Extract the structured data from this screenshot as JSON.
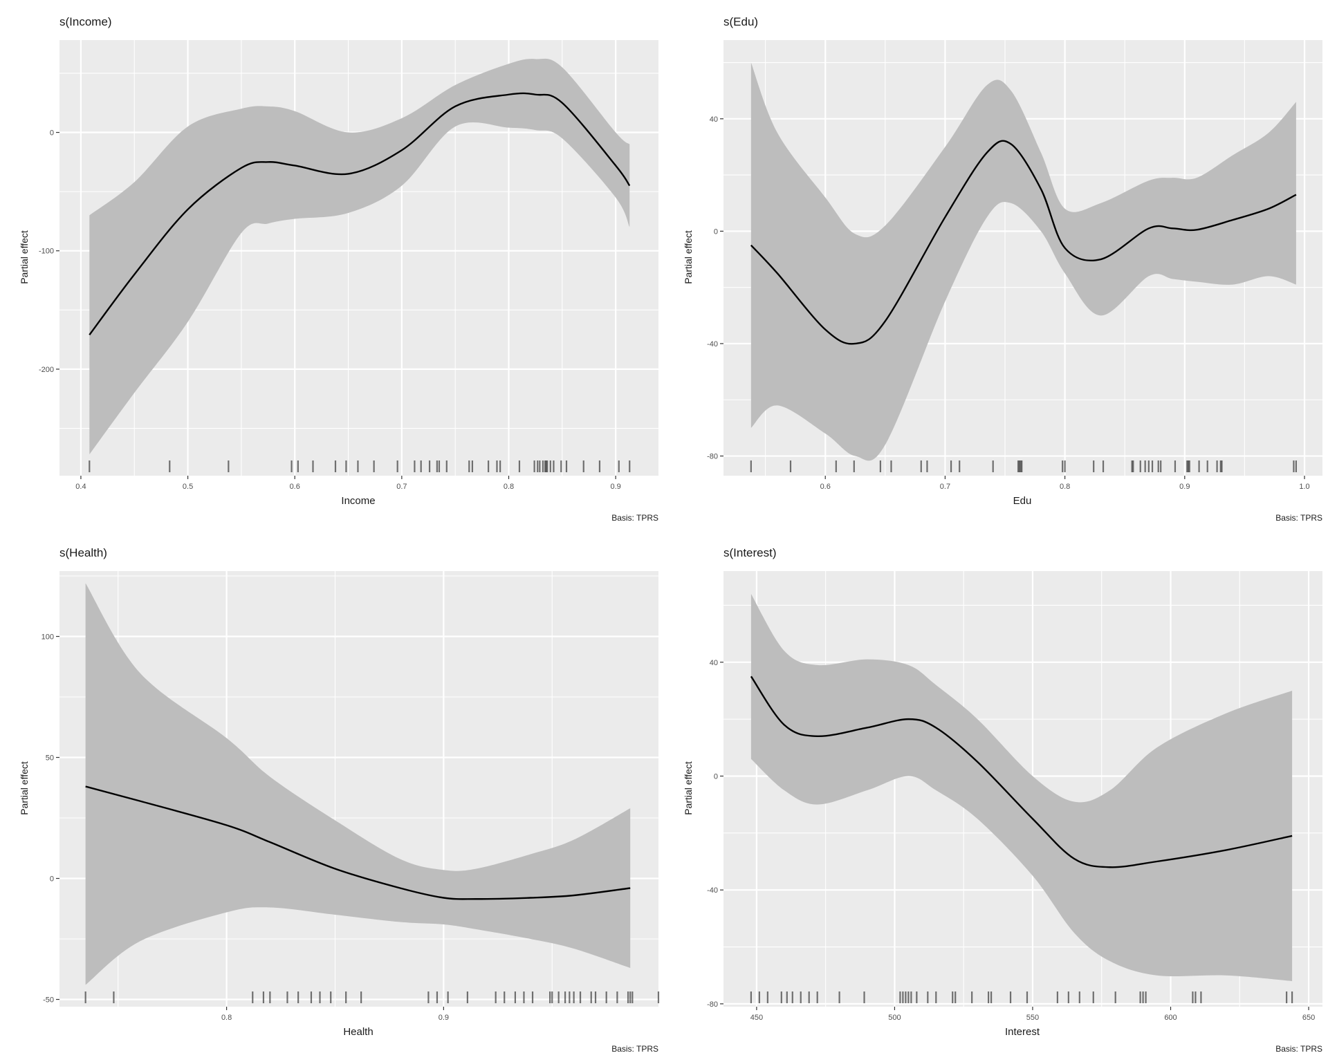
{
  "chart_data": [
    {
      "type": "line",
      "title": "s(Income)",
      "xlabel": "Income",
      "ylabel": "Partial effect",
      "caption": "Basis: TPRS",
      "xlim": [
        0.38,
        0.94
      ],
      "ylim": [
        -290,
        78
      ],
      "xticks": [
        0.4,
        0.5,
        0.6,
        0.7,
        0.8,
        0.9
      ],
      "xtick_labels": [
        "0.4",
        "0.5",
        "0.6",
        "0.7",
        "0.8",
        "0.9"
      ],
      "yticks": [
        -200,
        -100,
        0
      ],
      "ytick_labels": [
        "-200",
        "-100",
        "0"
      ],
      "grid": true,
      "series": [
        {
          "x": [
            0.408,
            0.45,
            0.5,
            0.55,
            0.575,
            0.6,
            0.65,
            0.7,
            0.75,
            0.8,
            0.825,
            0.85,
            0.9,
            0.913
          ],
          "fit": [
            -171,
            -120,
            -65,
            -30,
            -25,
            -28,
            -35,
            -15,
            22,
            32,
            32,
            25,
            -28,
            -45
          ],
          "lower": [
            -272,
            -220,
            -160,
            -85,
            -77,
            -73,
            -68,
            -45,
            5,
            4,
            2,
            -5,
            -55,
            -80
          ],
          "upper": [
            -70,
            -42,
            5,
            20,
            22,
            18,
            0,
            12,
            40,
            58,
            62,
            55,
            0,
            -10
          ]
        }
      ],
      "rug": [
        0.408,
        0.483,
        0.538,
        0.597,
        0.603,
        0.617,
        0.638,
        0.648,
        0.659,
        0.674,
        0.696,
        0.712,
        0.718,
        0.726,
        0.733,
        0.735,
        0.742,
        0.763,
        0.766,
        0.781,
        0.789,
        0.792,
        0.81,
        0.824,
        0.827,
        0.829,
        0.832,
        0.834,
        0.835,
        0.836,
        0.839,
        0.842,
        0.849,
        0.854,
        0.87,
        0.885,
        0.903,
        0.913
      ]
    },
    {
      "type": "line",
      "title": "s(Edu)",
      "xlabel": "Edu",
      "ylabel": "Partial effect",
      "caption": "Basis: TPRS",
      "xlim": [
        0.515,
        1.015
      ],
      "ylim": [
        -87,
        68
      ],
      "xticks": [
        0.6,
        0.7,
        0.8,
        0.9,
        1.0
      ],
      "xtick_labels": [
        "0.6",
        "0.7",
        "0.8",
        "0.9",
        "1.0"
      ],
      "yticks": [
        -80,
        -40,
        0,
        40
      ],
      "ytick_labels": [
        "-80",
        "-40",
        "0",
        "40"
      ],
      "grid": true,
      "series": [
        {
          "x": [
            0.538,
            0.56,
            0.6,
            0.625,
            0.65,
            0.7,
            0.735,
            0.755,
            0.78,
            0.8,
            0.83,
            0.87,
            0.89,
            0.91,
            0.94,
            0.97,
            0.993
          ],
          "fit": [
            -5,
            -15,
            -35,
            -40,
            -32,
            5,
            28,
            31,
            15,
            -6,
            -10,
            1,
            1,
            0.5,
            4,
            8,
            13
          ],
          "lower": [
            -70,
            -62,
            -72,
            -80,
            -76,
            -25,
            5,
            10,
            0,
            -15,
            -30,
            -16,
            -17,
            -18,
            -19,
            -16,
            -19
          ],
          "upper": [
            60,
            35,
            12,
            -1,
            2,
            30,
            52,
            50,
            28,
            8,
            10,
            18,
            19,
            19,
            27,
            35,
            46
          ]
        }
      ],
      "rug": [
        0.538,
        0.571,
        0.609,
        0.624,
        0.646,
        0.655,
        0.68,
        0.685,
        0.705,
        0.712,
        0.74,
        0.761,
        0.762,
        0.763,
        0.764,
        0.798,
        0.8,
        0.824,
        0.832,
        0.856,
        0.857,
        0.863,
        0.867,
        0.87,
        0.873,
        0.878,
        0.88,
        0.892,
        0.902,
        0.903,
        0.904,
        0.912,
        0.919,
        0.927,
        0.93,
        0.931,
        0.991,
        0.993
      ]
    },
    {
      "type": "line",
      "title": "s(Health)",
      "xlabel": "Health",
      "ylabel": "Partial effect",
      "caption": "Basis: TPRS",
      "xlim": [
        0.723,
        0.999
      ],
      "ylim": [
        -53,
        127
      ],
      "xticks": [
        0.8,
        0.9
      ],
      "xtick_labels": [
        "0.8",
        "0.9"
      ],
      "yticks": [
        -50,
        0,
        50,
        100
      ],
      "ytick_labels": [
        "-50",
        "0",
        "50",
        "100"
      ],
      "grid": true,
      "series": [
        {
          "x": [
            0.735,
            0.76,
            0.8,
            0.82,
            0.85,
            0.88,
            0.9,
            0.915,
            0.94,
            0.96,
            0.986
          ],
          "fit": [
            38,
            32,
            22,
            15,
            4,
            -4,
            -8,
            -8.5,
            -8,
            -7,
            -4
          ],
          "lower": [
            -44,
            -26,
            -14,
            -12,
            -15,
            -18,
            -19,
            -21,
            -25,
            -29,
            -37
          ],
          "upper": [
            122,
            85,
            58,
            42,
            24,
            8,
            3.5,
            4,
            10,
            16,
            29
          ]
        }
      ],
      "rug": [
        0.735,
        0.748,
        0.812,
        0.817,
        0.82,
        0.828,
        0.833,
        0.839,
        0.843,
        0.848,
        0.855,
        0.862,
        0.893,
        0.897,
        0.902,
        0.911,
        0.924,
        0.928,
        0.933,
        0.937,
        0.941,
        0.949,
        0.95,
        0.953,
        0.956,
        0.958,
        0.96,
        0.963,
        0.968,
        0.97,
        0.975,
        0.98,
        0.985,
        0.986,
        0.987,
        0.999
      ]
    },
    {
      "type": "line",
      "title": "s(Interest)",
      "xlabel": "Interest",
      "ylabel": "Partial effect",
      "caption": "Basis: TPRS",
      "xlim": [
        438,
        655
      ],
      "ylim": [
        -81,
        72
      ],
      "xticks": [
        450,
        500,
        550,
        600,
        650
      ],
      "xtick_labels": [
        "450",
        "500",
        "550",
        "600",
        "650"
      ],
      "yticks": [
        -80,
        -40,
        0,
        40
      ],
      "ytick_labels": [
        "-80",
        "-40",
        "0",
        "40"
      ],
      "grid": true,
      "series": [
        {
          "x": [
            448,
            460,
            472,
            490,
            505,
            515,
            530,
            550,
            565,
            578,
            595,
            620,
            644
          ],
          "fit": [
            35,
            18,
            14,
            17,
            20,
            17,
            5,
            -15,
            -29,
            -32,
            -30,
            -26,
            -21
          ],
          "lower": [
            6,
            -5,
            -10,
            -5,
            0,
            -5,
            -15,
            -35,
            -55,
            -65,
            -70,
            -70,
            -72
          ],
          "upper": [
            64,
            44,
            39,
            41,
            39,
            32,
            20,
            0,
            -9,
            -5,
            10,
            22,
            30
          ]
        }
      ],
      "rug": [
        448,
        451,
        454,
        459,
        461,
        463,
        466,
        469,
        472,
        480,
        489,
        502,
        503,
        504,
        505,
        506,
        508,
        512,
        515,
        521,
        522,
        528,
        534,
        535,
        542,
        548,
        559,
        563,
        567,
        572,
        580,
        589,
        590,
        591,
        608,
        609,
        611,
        642,
        644
      ]
    }
  ]
}
